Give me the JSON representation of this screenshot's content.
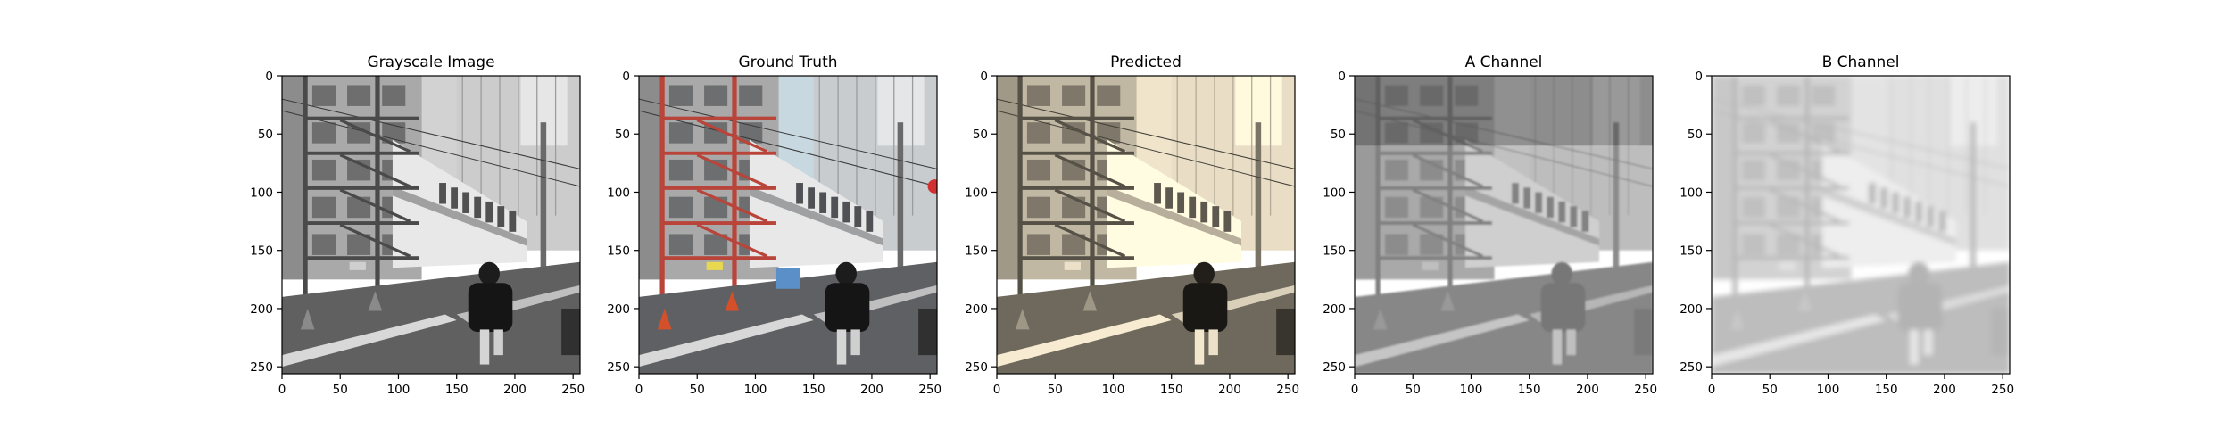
{
  "figure": {
    "panels": [
      {
        "title": "Grayscale Image",
        "kind": "grayscale"
      },
      {
        "title": "Ground Truth",
        "kind": "color"
      },
      {
        "title": "Predicted",
        "kind": "sepia"
      },
      {
        "title": "A Channel",
        "kind": "a-channel"
      },
      {
        "title": "B Channel",
        "kind": "b-channel"
      }
    ],
    "x_ticks": [
      0,
      50,
      100,
      150,
      200,
      250
    ],
    "y_ticks": [
      0,
      50,
      100,
      150,
      200,
      250
    ],
    "image_extent": [
      0,
      256
    ],
    "colors": {
      "fire_escape_red": "#b8443a",
      "cone_orange": "#d4502a",
      "sky_blue": "#c8d8e0",
      "sepia_wall": "#b8a894",
      "road_gray": "#5f6064"
    }
  }
}
